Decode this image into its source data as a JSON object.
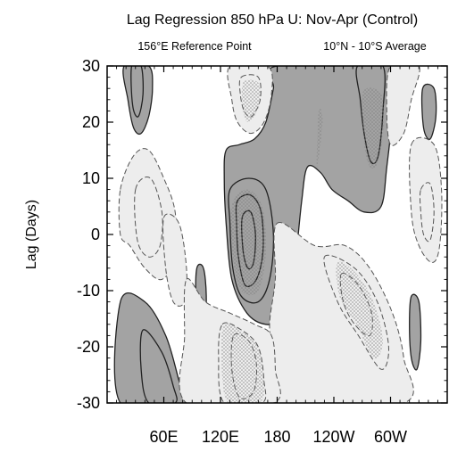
{
  "chart_data": {
    "type": "contour",
    "title": "Lag Regression 850 hPa U: Nov-Apr (Control)",
    "subtitle_left": "156°E Reference Point",
    "subtitle_right": "10°N - 10°S Average",
    "xlabel": "",
    "ylabel": "Lag (Days)",
    "x_ticks": [
      "60E",
      "120E",
      "180",
      "120W",
      "60W"
    ],
    "x_tick_lon": [
      60,
      120,
      180,
      240,
      300
    ],
    "xlim_lon": [
      0,
      360
    ],
    "y_ticks": [
      30,
      20,
      10,
      0,
      -10,
      -20,
      -30
    ],
    "ylim": [
      -30,
      30
    ],
    "positive_fill": "#a3a3a3",
    "negative_fill": "#ededed",
    "stipple_color": "#7a7a7a",
    "regions": [
      {
        "sign": "positive",
        "level": 1,
        "points": [
          [
            180,
            30
          ],
          [
            300,
            30
          ],
          [
            302,
            22
          ],
          [
            296,
            12
          ],
          [
            290,
            5
          ],
          [
            272,
            4
          ],
          [
            255,
            6
          ],
          [
            238,
            8
          ],
          [
            226,
            11
          ],
          [
            212,
            12
          ],
          [
            206,
            6
          ],
          [
            200,
            -4
          ],
          [
            196,
            -10
          ],
          [
            188,
            -15
          ],
          [
            168,
            -16
          ],
          [
            148,
            -14
          ],
          [
            132,
            -8
          ],
          [
            126,
            2
          ],
          [
            124,
            10
          ],
          [
            126,
            15
          ],
          [
            140,
            16
          ],
          [
            156,
            17
          ],
          [
            168,
            20
          ],
          [
            176,
            26
          ]
        ]
      },
      {
        "sign": "positive",
        "level": 2,
        "points": [
          [
            130,
            8
          ],
          [
            150,
            10
          ],
          [
            168,
            8
          ],
          [
            176,
            0
          ],
          [
            172,
            -8
          ],
          [
            160,
            -12
          ],
          [
            142,
            -11
          ],
          [
            133,
            -6
          ],
          [
            130,
            2
          ]
        ]
      },
      {
        "sign": "positive",
        "level": 3,
        "points": [
          [
            138,
            6
          ],
          [
            152,
            7
          ],
          [
            163,
            4
          ],
          [
            165,
            -3
          ],
          [
            158,
            -8
          ],
          [
            146,
            -9
          ],
          [
            139,
            -4
          ],
          [
            137,
            2
          ]
        ]
      },
      {
        "sign": "positive",
        "level": 4,
        "points": [
          [
            143,
            3
          ],
          [
            152,
            4
          ],
          [
            157,
            0
          ],
          [
            155,
            -5
          ],
          [
            149,
            -6
          ],
          [
            144,
            -3
          ]
        ]
      },
      {
        "sign": "positive",
        "level": 2,
        "points": [
          [
            265,
            30
          ],
          [
            292,
            30
          ],
          [
            292,
            22
          ],
          [
            287,
            14
          ],
          [
            279,
            13
          ],
          [
            272,
            18
          ],
          [
            268,
            24
          ]
        ]
      },
      {
        "sign": "positive",
        "level": 1,
        "points": [
          [
            18,
            30
          ],
          [
            44,
            30
          ],
          [
            48,
            26
          ],
          [
            44,
            21
          ],
          [
            36,
            18
          ],
          [
            28,
            19
          ],
          [
            22,
            24
          ]
        ]
      },
      {
        "sign": "positive",
        "level": 2,
        "points": [
          [
            26,
            30
          ],
          [
            36,
            30
          ],
          [
            38,
            25
          ],
          [
            33,
            21
          ],
          [
            27,
            23
          ]
        ]
      },
      {
        "sign": "positive",
        "level": 1,
        "points": [
          [
            14,
            -12
          ],
          [
            40,
            -12
          ],
          [
            62,
            -18
          ],
          [
            76,
            -26
          ],
          [
            82,
            -30
          ],
          [
            14,
            -30
          ]
        ]
      },
      {
        "sign": "positive",
        "level": 2,
        "points": [
          [
            38,
            -17
          ],
          [
            58,
            -21
          ],
          [
            70,
            -27
          ],
          [
            72,
            -30
          ],
          [
            44,
            -30
          ],
          [
            36,
            -24
          ]
        ]
      },
      {
        "sign": "positive",
        "level": 1,
        "points": [
          [
            95,
            -6
          ],
          [
            102,
            -6
          ],
          [
            105,
            -11
          ],
          [
            103,
            -17
          ],
          [
            97,
            -18
          ],
          [
            94,
            -12
          ]
        ]
      },
      {
        "sign": "positive",
        "level": 1,
        "points": [
          [
            322,
            -11
          ],
          [
            330,
            -12
          ],
          [
            332,
            -19
          ],
          [
            328,
            -24
          ],
          [
            322,
            -22
          ],
          [
            320,
            -16
          ]
        ]
      },
      {
        "sign": "positive",
        "level": 1,
        "points": [
          [
            334,
            26
          ],
          [
            346,
            26
          ],
          [
            348,
            21
          ],
          [
            342,
            17
          ],
          [
            335,
            19
          ]
        ]
      },
      {
        "sign": "negative",
        "level": 1,
        "points": [
          [
            14,
            8
          ],
          [
            28,
            14
          ],
          [
            44,
            15
          ],
          [
            60,
            10
          ],
          [
            72,
            4
          ],
          [
            72,
            -4
          ],
          [
            58,
            -8
          ],
          [
            40,
            -6
          ],
          [
            24,
            -2
          ],
          [
            14,
            0
          ]
        ]
      },
      {
        "sign": "negative",
        "level": 2,
        "points": [
          [
            30,
            8
          ],
          [
            46,
            10
          ],
          [
            58,
            4
          ],
          [
            56,
            -2
          ],
          [
            44,
            -4
          ],
          [
            32,
            -1
          ]
        ]
      },
      {
        "sign": "negative",
        "level": 1,
        "points": [
          [
            60,
            3
          ],
          [
            76,
            2
          ],
          [
            84,
            -6
          ],
          [
            82,
            -12
          ],
          [
            70,
            -12
          ],
          [
            62,
            -6
          ]
        ]
      },
      {
        "sign": "negative",
        "level": 1,
        "points": [
          [
            180,
            2
          ],
          [
            220,
            -2
          ],
          [
            252,
            -2
          ],
          [
            278,
            -6
          ],
          [
            302,
            -14
          ],
          [
            314,
            -22
          ],
          [
            314,
            -30
          ],
          [
            180,
            -30
          ],
          [
            176,
            -22
          ],
          [
            172,
            -16
          ],
          [
            178,
            -8
          ]
        ]
      },
      {
        "sign": "negative",
        "level": 2,
        "points": [
          [
            230,
            -4
          ],
          [
            262,
            -6
          ],
          [
            286,
            -12
          ],
          [
            298,
            -20
          ],
          [
            290,
            -24
          ],
          [
            266,
            -18
          ],
          [
            244,
            -12
          ]
        ]
      },
      {
        "sign": "negative",
        "level": 3,
        "points": [
          [
            248,
            -7
          ],
          [
            266,
            -9
          ],
          [
            280,
            -14
          ],
          [
            278,
            -18
          ],
          [
            262,
            -16
          ],
          [
            250,
            -12
          ]
        ]
      },
      {
        "sign": "negative",
        "level": 1,
        "points": [
          [
            84,
            -8
          ],
          [
            104,
            -12
          ],
          [
            130,
            -14
          ],
          [
            156,
            -16
          ],
          [
            174,
            -18
          ],
          [
            178,
            -24
          ],
          [
            176,
            -30
          ],
          [
            84,
            -30
          ],
          [
            82,
            -18
          ]
        ]
      },
      {
        "sign": "negative",
        "level": 2,
        "points": [
          [
            122,
            -16
          ],
          [
            142,
            -17
          ],
          [
            160,
            -20
          ],
          [
            166,
            -26
          ],
          [
            164,
            -30
          ],
          [
            124,
            -30
          ],
          [
            118,
            -22
          ]
        ]
      },
      {
        "sign": "negative",
        "level": 3,
        "points": [
          [
            134,
            -18
          ],
          [
            150,
            -19
          ],
          [
            158,
            -23
          ],
          [
            155,
            -28
          ],
          [
            140,
            -29
          ],
          [
            132,
            -24
          ]
        ]
      },
      {
        "sign": "negative",
        "level": 1,
        "points": [
          [
            130,
            30
          ],
          [
            170,
            30
          ],
          [
            174,
            25
          ],
          [
            166,
            20
          ],
          [
            152,
            18
          ],
          [
            138,
            20
          ],
          [
            132,
            24
          ]
        ]
      },
      {
        "sign": "negative",
        "level": 2,
        "points": [
          [
            142,
            28
          ],
          [
            160,
            28
          ],
          [
            162,
            24
          ],
          [
            153,
            21
          ],
          [
            145,
            22
          ],
          [
            141,
            25
          ]
        ]
      },
      {
        "sign": "negative",
        "level": 1,
        "points": [
          [
            300,
            30
          ],
          [
            330,
            30
          ],
          [
            322,
            24
          ],
          [
            314,
            18
          ],
          [
            300,
            16
          ],
          [
            296,
            22
          ]
        ]
      },
      {
        "sign": "negative",
        "level": 1,
        "points": [
          [
            322,
            16
          ],
          [
            346,
            16
          ],
          [
            354,
            8
          ],
          [
            352,
            -2
          ],
          [
            344,
            -5
          ],
          [
            330,
            -2
          ],
          [
            322,
            4
          ]
        ]
      },
      {
        "sign": "negative",
        "level": 2,
        "points": [
          [
            332,
            8
          ],
          [
            342,
            9
          ],
          [
            346,
            4
          ],
          [
            342,
            -1
          ],
          [
            335,
            0
          ],
          [
            332,
            4
          ]
        ]
      }
    ],
    "stipple_regions": [
      {
        "points": [
          [
            132,
            5
          ],
          [
            148,
            8
          ],
          [
            164,
            5
          ],
          [
            168,
            -3
          ],
          [
            160,
            -10
          ],
          [
            142,
            -10
          ],
          [
            133,
            -4
          ]
        ]
      },
      {
        "points": [
          [
            124,
            -16
          ],
          [
            140,
            -17
          ],
          [
            160,
            -20
          ],
          [
            166,
            -27
          ],
          [
            160,
            -30
          ],
          [
            128,
            -30
          ],
          [
            121,
            -22
          ]
        ]
      },
      {
        "points": [
          [
            244,
            -5
          ],
          [
            264,
            -7
          ],
          [
            282,
            -12
          ],
          [
            292,
            -19
          ],
          [
            282,
            -22
          ],
          [
            264,
            -16
          ],
          [
            246,
            -11
          ]
        ]
      },
      {
        "points": [
          [
            270,
            25
          ],
          [
            290,
            25
          ],
          [
            292,
            18
          ],
          [
            284,
            12
          ],
          [
            274,
            14
          ]
        ]
      },
      {
        "points": [
          [
            144,
            27
          ],
          [
            160,
            27
          ],
          [
            161,
            23
          ],
          [
            150,
            20
          ],
          [
            144,
            22
          ]
        ]
      },
      {
        "points": [
          [
            222,
            12
          ],
          [
            228,
            20
          ],
          [
            224,
            22
          ]
        ]
      }
    ]
  }
}
